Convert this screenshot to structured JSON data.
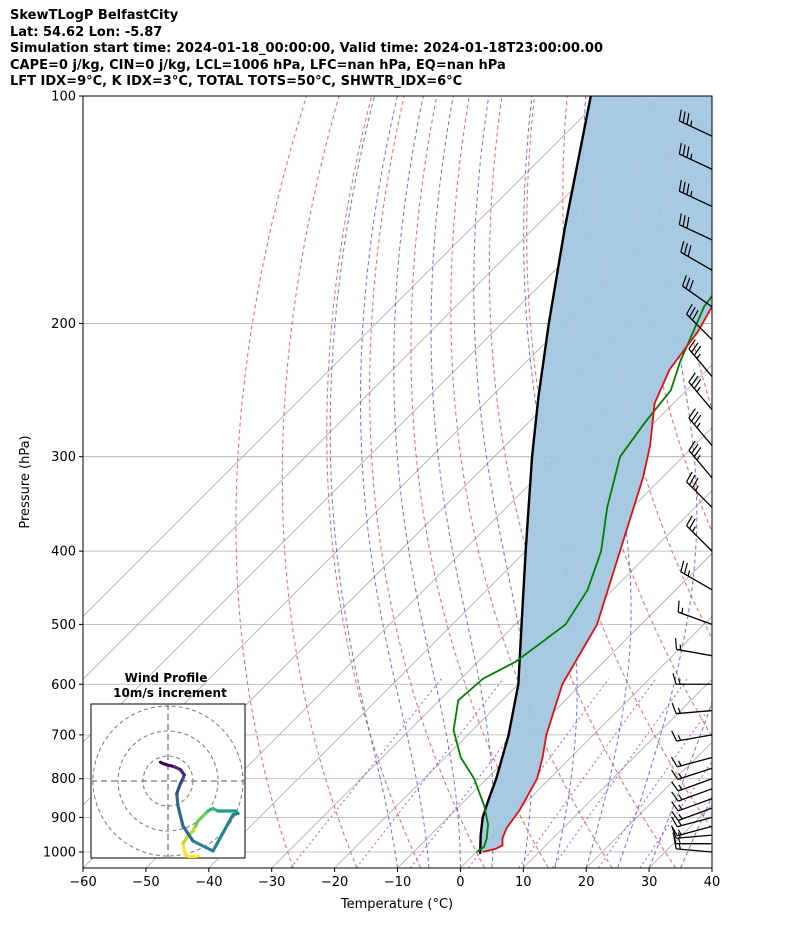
{
  "header": {
    "line1": "SkewTLogP BelfastCity",
    "line2": "Lat: 54.62   Lon: -5.87",
    "line3": "Simulation start time: 2024-01-18_00:00:00, Valid time: 2024-01-18T23:00:00.00",
    "line4": "CAPE=0 j/kg, CIN=0 j/kg, LCL=1006 hPa, LFC=nan hPa, EQ=nan hPa",
    "line5": "LFT IDX=9$^\\circ$C, K IDX=3$^\\circ$C, TOTAL TOTS=50$^\\circ$C, SHWTR_IDX=6$^\\circ$C"
  },
  "chart_data": {
    "type": "line",
    "xlabel": "Temperature ($^\\circ$C)",
    "ylabel": "Pressure (hPa)",
    "xlim": [
      -60,
      40
    ],
    "ylim": [
      1050,
      100
    ],
    "y_scale": "log",
    "skew": true,
    "grid": true,
    "x_ticks": [
      -60,
      -50,
      -40,
      -30,
      -20,
      -10,
      0,
      10,
      20,
      30,
      40
    ],
    "x_tick_labels": [
      "−60",
      "−50",
      "−40",
      "−30",
      "−20",
      "−10",
      "0",
      "10",
      "20",
      "30",
      "40"
    ],
    "y_ticks": [
      1000,
      900,
      800,
      700,
      600,
      500,
      400,
      300,
      200,
      100
    ],
    "y_tick_labels": [
      "1000",
      "900",
      "800",
      "700",
      "600",
      "500",
      "400",
      "300",
      "200",
      "100"
    ],
    "series": [
      {
        "role": "temperature",
        "color": "#e01010",
        "points": [
          [
            1000,
            1.0
          ],
          [
            990,
            2.6
          ],
          [
            980,
            3.1
          ],
          [
            960,
            2.0
          ],
          [
            930,
            1.0
          ],
          [
            880,
            0.2
          ],
          [
            800,
            -2.0
          ],
          [
            750,
            -4.5
          ],
          [
            700,
            -7.5
          ],
          [
            600,
            -13.0
          ],
          [
            500,
            -17.0
          ],
          [
            400,
            -25.0
          ],
          [
            320,
            -33.0
          ],
          [
            290,
            -37.0
          ],
          [
            255,
            -43.0
          ],
          [
            230,
            -46.0
          ],
          [
            205,
            -47.5
          ],
          [
            180,
            -50.5
          ],
          [
            150,
            -54.5
          ],
          [
            130,
            -56.0
          ],
          [
            115,
            -58.0
          ],
          [
            100,
            -59.0
          ]
        ]
      },
      {
        "role": "dewpoint",
        "color": "#008000",
        "points": [
          [
            1000,
            0.0
          ],
          [
            985,
            0.4
          ],
          [
            960,
            -0.5
          ],
          [
            920,
            -2.5
          ],
          [
            870,
            -6.0
          ],
          [
            800,
            -12.0
          ],
          [
            750,
            -17.5
          ],
          [
            690,
            -23.0
          ],
          [
            630,
            -27.0
          ],
          [
            590,
            -26.5
          ],
          [
            560,
            -24.0
          ],
          [
            500,
            -22.0
          ],
          [
            450,
            -24.0
          ],
          [
            400,
            -28.0
          ],
          [
            350,
            -34.0
          ],
          [
            300,
            -40.0
          ],
          [
            270,
            -41.5
          ],
          [
            245,
            -42.5
          ],
          [
            225,
            -45.5
          ],
          [
            190,
            -50.5
          ],
          [
            170,
            -52.0
          ],
          [
            150,
            -55.0
          ],
          [
            120,
            -58.5
          ],
          [
            100,
            -62.0
          ]
        ]
      },
      {
        "role": "parcel",
        "color": "#000000",
        "points": [
          [
            1006,
            0.9
          ],
          [
            950,
            -2.0
          ],
          [
            900,
            -4.5
          ],
          [
            850,
            -6.5
          ],
          [
            800,
            -8.5
          ],
          [
            700,
            -13.5
          ],
          [
            600,
            -20.0
          ],
          [
            500,
            -29.0
          ],
          [
            400,
            -40.0
          ],
          [
            300,
            -54.0
          ],
          [
            250,
            -62.5
          ],
          [
            200,
            -72.5
          ],
          [
            150,
            -85.0
          ],
          [
            100,
            -102.0
          ]
        ]
      }
    ],
    "shading": "between temperature and parcel",
    "shading_color": "#a2c6e0",
    "isotherms": [
      -100,
      -90,
      -80,
      -70,
      -60,
      -50,
      -40,
      -30,
      -20,
      -10,
      0,
      10,
      20,
      30,
      40
    ],
    "dry_adiabats_theta_c": [
      -30,
      -20,
      -10,
      0,
      10,
      20,
      30,
      40,
      50,
      60,
      70,
      80,
      90,
      100,
      110,
      120,
      130,
      140,
      150
    ],
    "moist_adiabats_tbase_c": [
      -10,
      -5,
      0,
      5,
      10,
      15,
      20,
      25,
      30,
      35,
      40
    ],
    "mixing_ratio_lines": [
      0.4,
      1,
      2,
      4,
      7,
      10,
      16,
      24
    ],
    "wind_barbs": [
      {
        "p": 1000,
        "speed": 15,
        "dir": 275
      },
      {
        "p": 975,
        "speed": 15,
        "dir": 270
      },
      {
        "p": 950,
        "speed": 15,
        "dir": 265
      },
      {
        "p": 925,
        "speed": 15,
        "dir": 255
      },
      {
        "p": 900,
        "speed": 15,
        "dir": 255
      },
      {
        "p": 875,
        "speed": 15,
        "dir": 250
      },
      {
        "p": 850,
        "speed": 15,
        "dir": 250
      },
      {
        "p": 825,
        "speed": 15,
        "dir": 250
      },
      {
        "p": 800,
        "speed": 15,
        "dir": 250
      },
      {
        "p": 775,
        "speed": 15,
        "dir": 252
      },
      {
        "p": 750,
        "speed": 15,
        "dir": 255
      },
      {
        "p": 700,
        "speed": 15,
        "dir": 260
      },
      {
        "p": 650,
        "speed": 15,
        "dir": 265
      },
      {
        "p": 600,
        "speed": 15,
        "dir": 270
      },
      {
        "p": 550,
        "speed": 15,
        "dir": 280
      },
      {
        "p": 500,
        "speed": 15,
        "dir": 290
      },
      {
        "p": 450,
        "speed": 25,
        "dir": 300
      },
      {
        "p": 400,
        "speed": 25,
        "dir": 315
      },
      {
        "p": 350,
        "speed": 35,
        "dir": 315
      },
      {
        "p": 320,
        "speed": 35,
        "dir": 320
      },
      {
        "p": 290,
        "speed": 35,
        "dir": 320
      },
      {
        "p": 260,
        "speed": 35,
        "dir": 320
      },
      {
        "p": 235,
        "speed": 35,
        "dir": 320
      },
      {
        "p": 210,
        "speed": 30,
        "dir": 315
      },
      {
        "p": 190,
        "speed": 30,
        "dir": 305
      },
      {
        "p": 170,
        "speed": 30,
        "dir": 300
      },
      {
        "p": 155,
        "speed": 30,
        "dir": 295
      },
      {
        "p": 140,
        "speed": 35,
        "dir": 295
      },
      {
        "p": 125,
        "speed": 35,
        "dir": 295
      },
      {
        "p": 113,
        "speed": 35,
        "dir": 295
      }
    ],
    "hodograph": {
      "title": "Wind Profile",
      "subtitle": "10m/s increment",
      "rings_ms": [
        10,
        20,
        30
      ],
      "u": [
        12,
        9,
        7.5,
        6.5,
        6,
        8,
        10,
        11,
        12,
        14,
        16,
        18,
        19,
        20,
        22,
        27,
        28,
        26,
        18,
        10,
        6,
        4,
        3.5,
        5,
        6,
        6.5,
        5,
        3,
        1.5,
        -0.5,
        -2,
        -3
      ],
      "v": [
        -30,
        -30.5,
        -30,
        -28,
        -25,
        -22,
        -20,
        -18,
        -16,
        -14,
        -12,
        -11,
        -11.5,
        -12,
        -12,
        -12,
        -13,
        -13.5,
        -28,
        -24,
        -18,
        -10,
        -5,
        -1,
        1,
        2.5,
        4.5,
        5.5,
        6,
        6.5,
        7,
        7.5
      ]
    }
  }
}
